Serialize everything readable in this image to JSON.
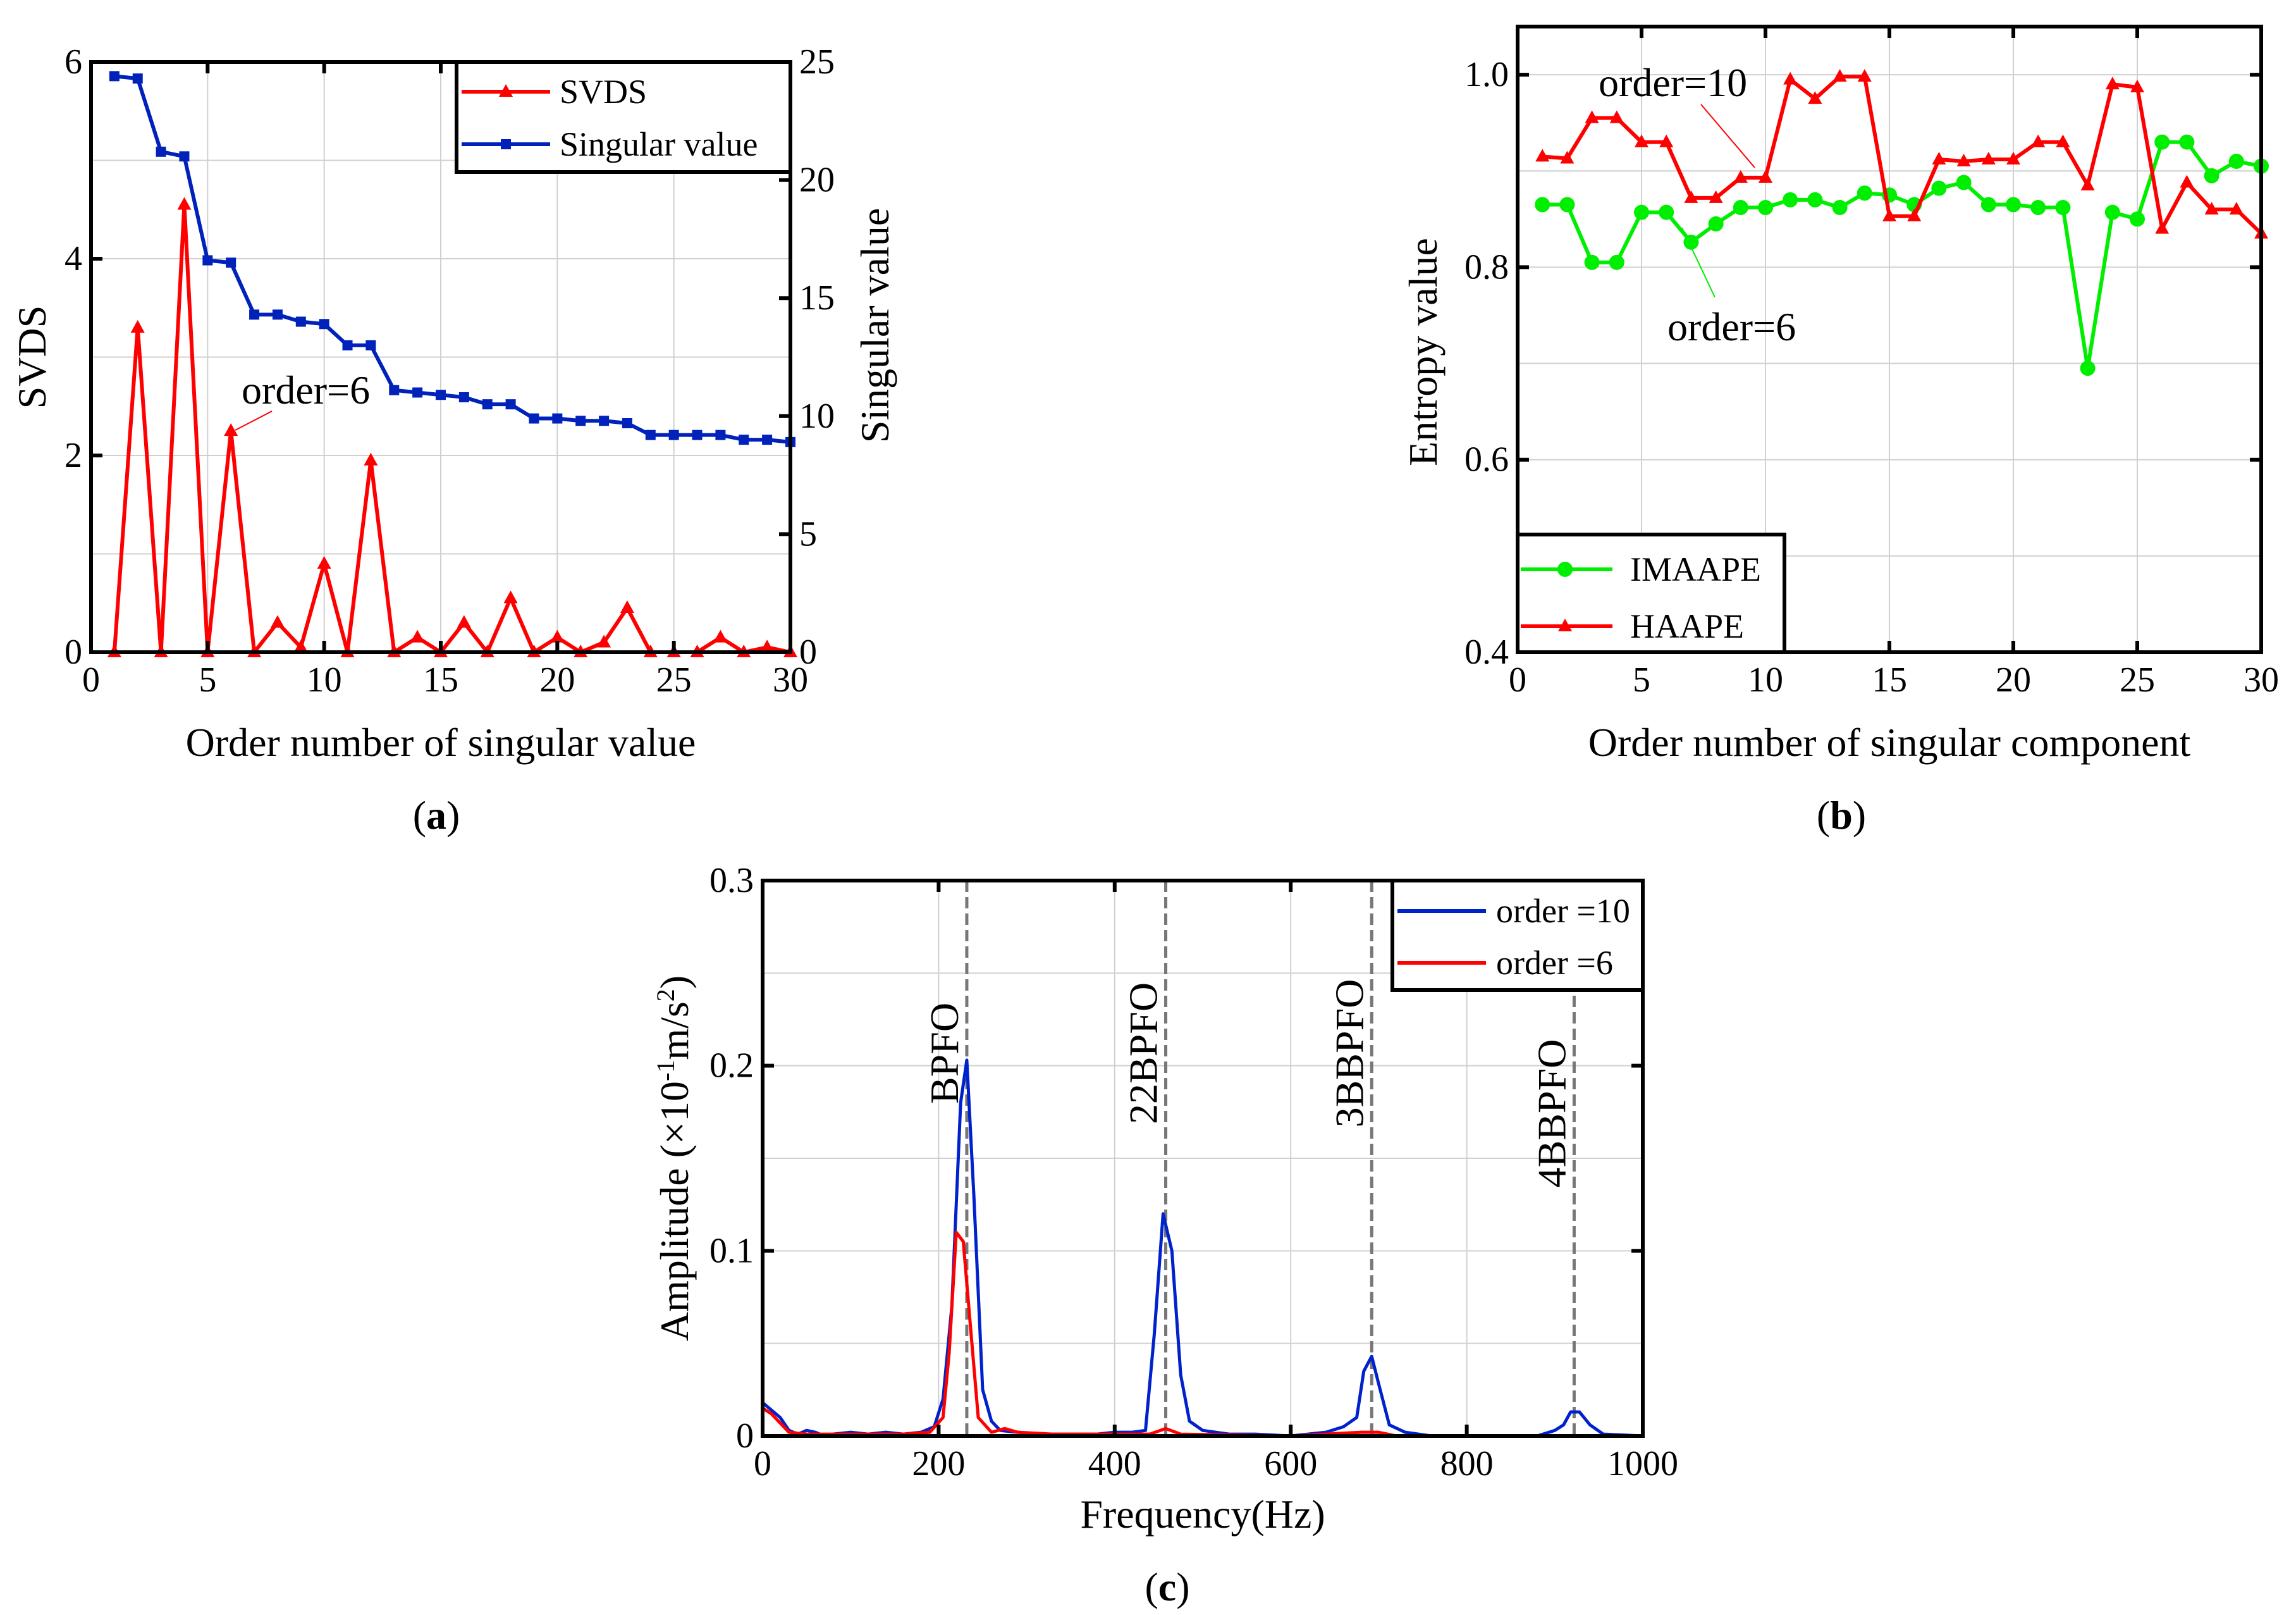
{
  "captions": {
    "a": "a",
    "b": "b",
    "c": "c",
    "open": "(",
    "close": ")"
  },
  "chart_data": [
    {
      "type": "line",
      "id": "a",
      "xlabel": "Order number of singular value",
      "ylabel": "SVDS",
      "y2label": "Singular value",
      "xlim": [
        0,
        30
      ],
      "ylim": [
        0,
        6
      ],
      "y2lim": [
        0,
        25
      ],
      "xticks": [
        0,
        5,
        10,
        15,
        20,
        25,
        30
      ],
      "yticks": [
        0,
        2,
        4,
        6
      ],
      "y2ticks": [
        0,
        5,
        10,
        15,
        20,
        25
      ],
      "grid": true,
      "legend_position": "top-right",
      "annotation": "order=6",
      "x": [
        1,
        2,
        3,
        4,
        5,
        6,
        7,
        8,
        9,
        10,
        11,
        12,
        13,
        14,
        15,
        16,
        17,
        18,
        19,
        20,
        21,
        22,
        23,
        24,
        25,
        26,
        27,
        28,
        29,
        30
      ],
      "series": [
        {
          "name": "SVDS",
          "axis": "left",
          "color": "#ff0000",
          "values": [
            0,
            3.3,
            0,
            4.55,
            0,
            2.25,
            0,
            0.3,
            0.05,
            0.9,
            0,
            1.95,
            0,
            0.15,
            0,
            0.3,
            0,
            0.55,
            0,
            0.15,
            0,
            0.1,
            0.45,
            0,
            0,
            0,
            0.15,
            0,
            0.05,
            0
          ]
        },
        {
          "name": "Singular value",
          "axis": "right",
          "color": "#0022bb",
          "values": [
            24.4,
            24.3,
            21.2,
            21.0,
            16.6,
            16.5,
            14.3,
            14.3,
            14.0,
            13.9,
            13.0,
            13.0,
            11.1,
            11.0,
            10.9,
            10.8,
            10.5,
            10.5,
            9.9,
            9.9,
            9.8,
            9.8,
            9.7,
            9.2,
            9.2,
            9.2,
            9.2,
            9.0,
            9.0,
            8.9
          ]
        }
      ]
    },
    {
      "type": "line",
      "id": "b",
      "xlabel": "Order number of singular component",
      "ylabel": "Entropy value",
      "xlim": [
        0,
        30
      ],
      "ylim": [
        0.4,
        1.05
      ],
      "xticks": [
        0,
        5,
        10,
        15,
        20,
        25,
        30
      ],
      "yticks": [
        "0.4",
        "0.6",
        "0.8",
        "1.0"
      ],
      "grid": true,
      "legend_position": "bottom-left",
      "annotations": [
        "order=10",
        "order=6"
      ],
      "x": [
        1,
        2,
        3,
        4,
        5,
        6,
        7,
        8,
        9,
        10,
        11,
        12,
        13,
        14,
        15,
        16,
        17,
        18,
        19,
        20,
        21,
        22,
        23,
        24,
        25,
        26,
        27,
        28,
        29,
        30
      ],
      "series": [
        {
          "name": "IMAAPE",
          "color": "#00ee00",
          "values": [
            0.865,
            0.865,
            0.805,
            0.805,
            0.857,
            0.857,
            0.826,
            0.845,
            0.862,
            0.862,
            0.87,
            0.87,
            0.862,
            0.877,
            0.875,
            0.865,
            0.882,
            0.888,
            0.865,
            0.865,
            0.862,
            0.862,
            0.695,
            0.857,
            0.85,
            0.93,
            0.93,
            0.895,
            0.91,
            0.905
          ]
        },
        {
          "name": "HAAPE",
          "color": "#ff0000",
          "values": [
            0.915,
            0.913,
            0.955,
            0.955,
            0.93,
            0.93,
            0.872,
            0.872,
            0.893,
            0.893,
            0.995,
            0.975,
            0.998,
            0.998,
            0.853,
            0.853,
            0.912,
            0.91,
            0.912,
            0.912,
            0.93,
            0.93,
            0.885,
            0.99,
            0.987,
            0.84,
            0.888,
            0.86,
            0.86,
            0.835
          ]
        }
      ]
    },
    {
      "type": "line",
      "id": "c",
      "xlabel": "Frequency(Hz)",
      "ylabel_pre": "Amplitude (×10",
      "ylabel_sup1": "-1",
      "ylabel_mid": "m/s",
      "ylabel_sup2": "2",
      "ylabel_post": ")",
      "xlim": [
        0,
        1000
      ],
      "ylim": [
        0,
        0.3
      ],
      "xticks": [
        0,
        200,
        400,
        600,
        800,
        1000
      ],
      "yticks": [
        "0",
        "0.1",
        "0.2",
        "0.3"
      ],
      "grid": true,
      "legend_position": "top-right",
      "markers": [
        {
          "x": 232,
          "label": "BPFO"
        },
        {
          "x": 458,
          "label": "22BPFO"
        },
        {
          "x": 692,
          "label": "3BBPFO"
        },
        {
          "x": 922,
          "label": "4BBPFO"
        }
      ],
      "series": [
        {
          "name": "order =10",
          "color": "#0022cc",
          "points": [
            [
              0,
              0.018
            ],
            [
              10,
              0.014
            ],
            [
              20,
              0.01
            ],
            [
              30,
              0.003
            ],
            [
              40,
              0.001
            ],
            [
              50,
              0.003
            ],
            [
              60,
              0.002
            ],
            [
              70,
              0
            ],
            [
              80,
              0.001
            ],
            [
              100,
              0.002
            ],
            [
              120,
              0.001
            ],
            [
              140,
              0.002
            ],
            [
              160,
              0.001
            ],
            [
              180,
              0.002
            ],
            [
              195,
              0.005
            ],
            [
              205,
              0.02
            ],
            [
              215,
              0.07
            ],
            [
              225,
              0.18
            ],
            [
              232,
              0.203
            ],
            [
              240,
              0.13
            ],
            [
              250,
              0.025
            ],
            [
              260,
              0.008
            ],
            [
              270,
              0.003
            ],
            [
              290,
              0.002
            ],
            [
              320,
              0.001
            ],
            [
              350,
              0.001
            ],
            [
              380,
              0.001
            ],
            [
              400,
              0.002
            ],
            [
              420,
              0.002
            ],
            [
              435,
              0.003
            ],
            [
              445,
              0.055
            ],
            [
              455,
              0.12
            ],
            [
              465,
              0.1
            ],
            [
              475,
              0.033
            ],
            [
              485,
              0.008
            ],
            [
              500,
              0.003
            ],
            [
              530,
              0.001
            ],
            [
              560,
              0.001
            ],
            [
              600,
              0
            ],
            [
              640,
              0.002
            ],
            [
              660,
              0.005
            ],
            [
              675,
              0.01
            ],
            [
              683,
              0.035
            ],
            [
              692,
              0.043
            ],
            [
              700,
              0.028
            ],
            [
              712,
              0.006
            ],
            [
              730,
              0.002
            ],
            [
              760,
              0
            ],
            [
              880,
              0
            ],
            [
              900,
              0.003
            ],
            [
              910,
              0.006
            ],
            [
              918,
              0.013
            ],
            [
              928,
              0.013
            ],
            [
              940,
              0.006
            ],
            [
              955,
              0.001
            ],
            [
              1000,
              0
            ]
          ]
        },
        {
          "name": "order =6",
          "color": "#ff0000",
          "points": [
            [
              0,
              0.015
            ],
            [
              10,
              0.012
            ],
            [
              20,
              0.007
            ],
            [
              30,
              0.002
            ],
            [
              50,
              0.001
            ],
            [
              80,
              0.001
            ],
            [
              120,
              0.001
            ],
            [
              160,
              0.001
            ],
            [
              190,
              0.002
            ],
            [
              205,
              0.01
            ],
            [
              212,
              0.045
            ],
            [
              220,
              0.11
            ],
            [
              228,
              0.105
            ],
            [
              236,
              0.06
            ],
            [
              245,
              0.01
            ],
            [
              260,
              0.002
            ],
            [
              275,
              0.004
            ],
            [
              290,
              0.002
            ],
            [
              330,
              0.001
            ],
            [
              400,
              0.001
            ],
            [
              440,
              0.001
            ],
            [
              458,
              0.004
            ],
            [
              475,
              0.001
            ],
            [
              600,
              0
            ],
            [
              680,
              0.002
            ],
            [
              700,
              0.002
            ],
            [
              720,
              0
            ],
            [
              1000,
              0
            ]
          ]
        }
      ]
    }
  ]
}
